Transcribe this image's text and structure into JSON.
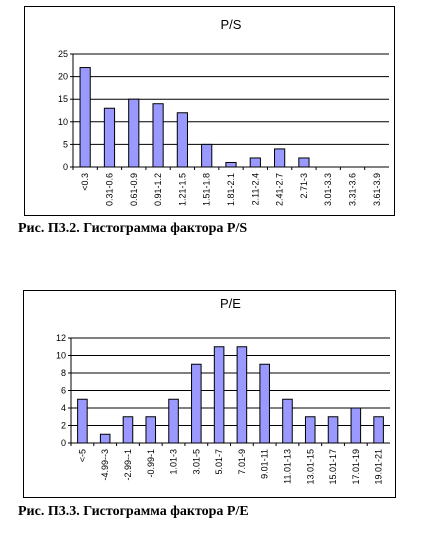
{
  "chart_data": [
    {
      "type": "bar",
      "title": "P/S",
      "categories": [
        "<0.3",
        "0.31-0.6",
        "0.61-0.9",
        "0.91-1.2",
        "1.21-1.5",
        "1.51-1.8",
        "1.81-2.1",
        "2.11-2.4",
        "2.41-2.7",
        "2.71-3",
        "3.01-3.3",
        "3.31-3.6",
        "3.61-3.9"
      ],
      "values": [
        22,
        13,
        15,
        14,
        12,
        5,
        1,
        2,
        4,
        2,
        0,
        0,
        0
      ],
      "ylim": [
        0,
        25
      ],
      "yticks": [
        "0",
        "5",
        "10",
        "15",
        "20",
        "25"
      ],
      "grid": true,
      "colors": {
        "bar": "#9999ff",
        "border": "#000000"
      }
    },
    {
      "type": "bar",
      "title": "P/E",
      "categories": [
        "<-5",
        "-4.99--3",
        "-2.99--1",
        "-0.99-1",
        "1.01-3",
        "3.01-5",
        "5.01-7",
        "7.01-9",
        "9.01-11",
        "11.01-13",
        "13.01-15",
        "15.01-17",
        "17.01-19",
        "19.01-21"
      ],
      "values": [
        5,
        1,
        3,
        3,
        5,
        9,
        11,
        11,
        9,
        5,
        3,
        3,
        4,
        3
      ],
      "ylim": [
        0,
        12
      ],
      "yticks": [
        "0",
        "2",
        "4",
        "6",
        "8",
        "10",
        "12"
      ],
      "grid": true,
      "colors": {
        "bar": "#9999ff",
        "border": "#000000"
      }
    }
  ],
  "captions": {
    "fig1": "Рис. П3.2. Гистограмма фактора P/S",
    "fig2": "Рис. П3.3. Гистограмма фактора P/E"
  }
}
